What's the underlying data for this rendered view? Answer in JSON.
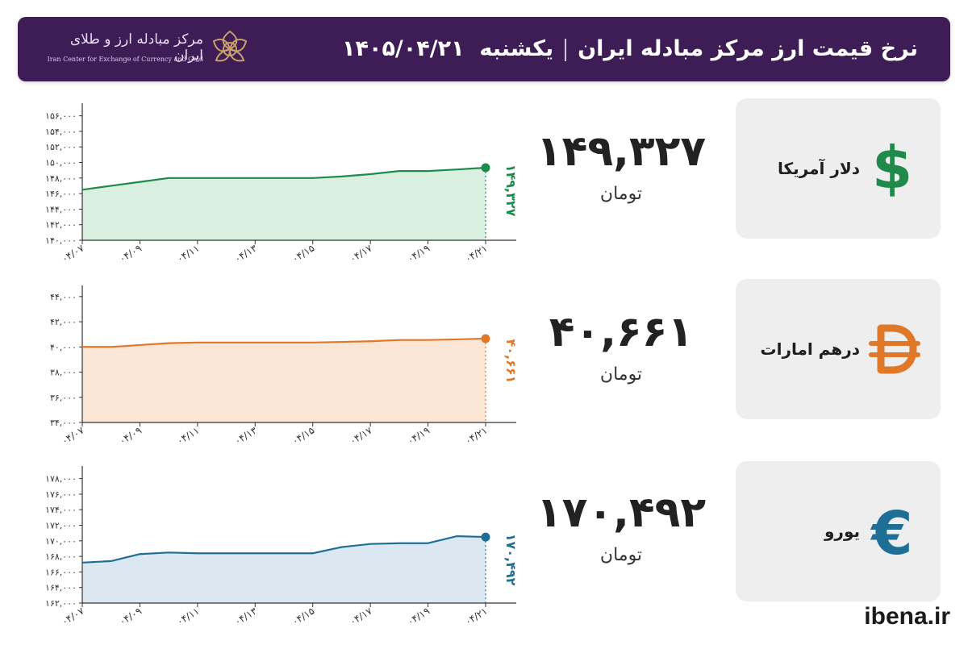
{
  "header": {
    "title": "نرخ قیمت ارز مرکز مبادله ایران",
    "day": "یکشنبه",
    "date": "۱۴۰۵/۰۴/۲۱",
    "logo_fa": "مرکز مبادله ارز و طلای ایران",
    "logo_en": "Iran Center for Exchange of Currency and Gold",
    "accent_color": "#3e1d57"
  },
  "currencies": [
    {
      "name": "دلار آمریکا",
      "symbol_icon": "dollar-icon",
      "value": "۱۴۹,۳۲۷",
      "unit": "تومان",
      "color": "#1f8a4c"
    },
    {
      "name": "درهم امارات",
      "symbol_icon": "dirham-icon",
      "value": "۴۰,۶۶۱",
      "unit": "تومان",
      "color": "#e0782a"
    },
    {
      "name": "یورو",
      "symbol_icon": "euro-icon",
      "value": "۱۷۰,۴۹۲",
      "unit": "تومان",
      "color": "#1f6e96"
    }
  ],
  "brand": "ibena.ir",
  "chart_data": [
    {
      "type": "area",
      "color": "#1f8a4c",
      "fill": "#d9efdf",
      "categories": [
        "۰۴/۰۷",
        "۰۴/۰۹",
        "۰۴/۱۱",
        "۰۴/۱۳",
        "۰۴/۱۵",
        "۰۴/۱۷",
        "۰۴/۱۹",
        "۰۴/۲۱"
      ],
      "x": [
        7,
        8,
        9,
        10,
        11,
        12,
        13,
        14,
        15,
        16,
        17,
        18,
        19,
        20,
        21
      ],
      "y": [
        146500,
        147000,
        147500,
        148000,
        148000,
        148000,
        148000,
        148000,
        148000,
        148200,
        148500,
        148900,
        148900,
        149100,
        149327
      ],
      "yticks": [
        140000,
        142000,
        144000,
        146000,
        148000,
        150000,
        152000,
        154000,
        156000
      ],
      "ytick_labels": [
        "۱۴۰,۰۰۰",
        "۱۴۲,۰۰۰",
        "۱۴۴,۰۰۰",
        "۱۴۶,۰۰۰",
        "۱۴۸,۰۰۰",
        "۱۵۰,۰۰۰",
        "۱۵۲,۰۰۰",
        "۱۵۴,۰۰۰",
        "۱۵۶,۰۰۰"
      ],
      "ylim": [
        140000,
        157000
      ],
      "end_label": "۱۴۹,۳۲۷"
    },
    {
      "type": "area",
      "color": "#e0782a",
      "fill": "#fbe6d5",
      "categories": [
        "۰۴/۰۷",
        "۰۴/۰۹",
        "۰۴/۱۱",
        "۰۴/۱۳",
        "۰۴/۱۵",
        "۰۴/۱۷",
        "۰۴/۱۹",
        "۰۴/۲۱"
      ],
      "x": [
        7,
        8,
        9,
        10,
        11,
        12,
        13,
        14,
        15,
        16,
        17,
        18,
        19,
        20,
        21
      ],
      "y": [
        40000,
        40000,
        40150,
        40300,
        40350,
        40350,
        40350,
        40350,
        40350,
        40400,
        40450,
        40550,
        40550,
        40600,
        40661
      ],
      "yticks": [
        34000,
        36000,
        38000,
        40000,
        42000,
        44000
      ],
      "ytick_labels": [
        "۳۴,۰۰۰",
        "۳۶,۰۰۰",
        "۳۸,۰۰۰",
        "۴۰,۰۰۰",
        "۴۲,۰۰۰",
        "۴۴,۰۰۰"
      ],
      "ylim": [
        34000,
        44500
      ],
      "end_label": "۴۰,۶۶۱"
    },
    {
      "type": "area",
      "color": "#1f6e96",
      "fill": "#dbe8f1",
      "categories": [
        "۰۴/۰۷",
        "۰۴/۰۹",
        "۰۴/۱۱",
        "۰۴/۱۳",
        "۰۴/۱۵",
        "۰۴/۱۷",
        "۰۴/۱۹",
        "۰۴/۲۱"
      ],
      "x": [
        7,
        8,
        9,
        10,
        11,
        12,
        13,
        14,
        15,
        16,
        17,
        18,
        19,
        20,
        21
      ],
      "y": [
        167200,
        167400,
        168300,
        168500,
        168400,
        168400,
        168400,
        168400,
        168400,
        169200,
        169600,
        169700,
        169700,
        170600,
        170492
      ],
      "yticks": [
        162000,
        164000,
        166000,
        168000,
        170000,
        172000,
        174000,
        176000,
        178000
      ],
      "ytick_labels": [
        "۱۶۲,۰۰۰",
        "۱۶۴,۰۰۰",
        "۱۶۶,۰۰۰",
        "۱۶۸,۰۰۰",
        "۱۷۰,۰۰۰",
        "۱۷۲,۰۰۰",
        "۱۷۴,۰۰۰",
        "۱۷۶,۰۰۰",
        "۱۷۸,۰۰۰"
      ],
      "ylim": [
        162000,
        179000
      ],
      "end_label": "۱۷۰,۴۹۲"
    }
  ]
}
